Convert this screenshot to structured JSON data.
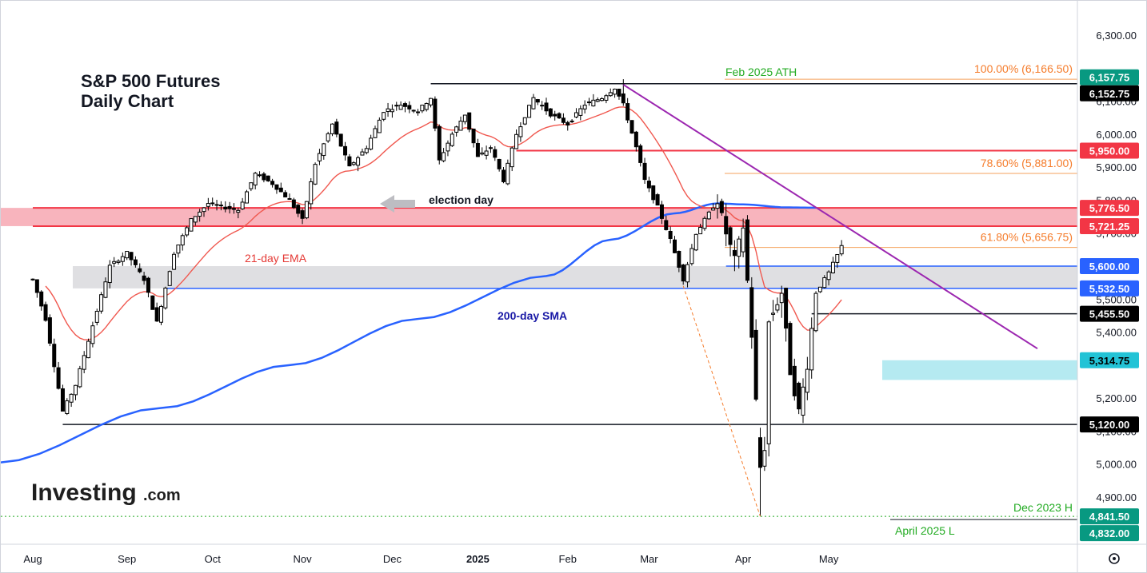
{
  "chart_data": {
    "type": "candlestick",
    "title_line1": "S&P 500 Futures",
    "title_line2": "Daily Chart",
    "brand_main": "Investing",
    "brand_suffix": ".com",
    "ylim": [
      4780,
      6380
    ],
    "y_ticks": [
      {
        "value": 6300,
        "label": "6,300.00"
      },
      {
        "value": 6100,
        "label": "6,100.00"
      },
      {
        "value": 6000,
        "label": "6,000.00"
      },
      {
        "value": 5900,
        "label": "5,900.00"
      },
      {
        "value": 5800,
        "label": "5,800.00"
      },
      {
        "value": 5700,
        "label": "5,700.00"
      },
      {
        "value": 5500,
        "label": "5,500.00"
      },
      {
        "value": 5400,
        "label": "5,400.00"
      },
      {
        "value": 5200,
        "label": "5,200.00"
      },
      {
        "value": 5100,
        "label": "5,100.00"
      },
      {
        "value": 5000,
        "label": "5,000.00"
      },
      {
        "value": 4900,
        "label": "4,900.00"
      }
    ],
    "x_ticks": [
      {
        "label": "Aug",
        "bold": false
      },
      {
        "label": "Sep",
        "bold": false
      },
      {
        "label": "Oct",
        "bold": false
      },
      {
        "label": "Nov",
        "bold": false
      },
      {
        "label": "Dec",
        "bold": false
      },
      {
        "label": "2025",
        "bold": true
      },
      {
        "label": "Feb",
        "bold": false
      },
      {
        "label": "Mar",
        "bold": false
      },
      {
        "label": "Apr",
        "bold": false
      },
      {
        "label": "May",
        "bold": false
      }
    ],
    "x_tick_days": [
      0,
      22,
      42,
      63,
      84,
      104,
      125,
      144,
      166,
      186
    ],
    "zones": [
      {
        "name": "resistance-zone",
        "from": 5721.25,
        "to": 5776.5,
        "color": "#f7a7b2"
      },
      {
        "name": "gray-zone",
        "from": 5532.5,
        "to": 5600,
        "color": "#d9d9dd"
      },
      {
        "name": "support-zone",
        "from": 5255,
        "to": 5314.75,
        "color": "#a8e6ef"
      }
    ],
    "levels": [
      {
        "value": 6157.75,
        "label": "6,157.75",
        "bg": "#089981",
        "fg": "#ffffff",
        "line": null
      },
      {
        "value": 6152.75,
        "label": "6,152.75",
        "bg": "#000000",
        "fg": "#ffffff",
        "line": "#131722",
        "from_day": 93
      },
      {
        "value": 5950,
        "label": "5,950.00",
        "bg": "#f23645",
        "fg": "#ffffff",
        "line": "#f23645",
        "from_day": 113
      },
      {
        "value": 5776.5,
        "label": "5,776.50",
        "bg": "#f23645",
        "fg": "#ffffff",
        "line": "#f23645",
        "from_day": 0
      },
      {
        "value": 5721.25,
        "label": "5,721.25",
        "bg": "#f23645",
        "fg": "#ffffff",
        "line": "#f23645",
        "from_day": 0
      },
      {
        "value": 5600,
        "label": "5,600.00",
        "bg": "#2962ff",
        "fg": "#ffffff",
        "line": "#2962ff",
        "from_day": 162
      },
      {
        "value": 5532.5,
        "label": "5,532.50",
        "bg": "#2962ff",
        "fg": "#ffffff",
        "line": "#2962ff",
        "from_day": 31
      },
      {
        "value": 5455.5,
        "label": "5,455.50",
        "bg": "#000000",
        "fg": "#ffffff",
        "line": "#131722",
        "from_day": 182
      },
      {
        "value": 5314.75,
        "label": "5,314.75",
        "bg": "#22c3d6",
        "fg": "#000000",
        "line": null
      },
      {
        "value": 5120,
        "label": "5,120.00",
        "bg": "#000000",
        "fg": "#ffffff",
        "line": "#131722",
        "from_day": 7
      },
      {
        "value": 4841.5,
        "label": "4,841.50",
        "bg": "#089981",
        "fg": "#ffffff",
        "line": null
      },
      {
        "value": 4832,
        "label": "4,832.00",
        "bg": "#089981",
        "fg": "#ffffff",
        "line": null
      }
    ],
    "fibonacci": [
      {
        "value": 6166.5,
        "label": "100.00% (6,166.50)"
      },
      {
        "value": 5881,
        "label": "78.60% (5,881.00)"
      },
      {
        "value": 5656.75,
        "label": "61.80% (5,656.75)"
      }
    ],
    "annotations": {
      "ath": "Feb 2025 ATH",
      "election": "election day",
      "ema": "21-day EMA",
      "sma": "200-day SMA",
      "dec2023": "Dec 2023 H",
      "april_low": "April 2025 L"
    },
    "series": [
      {
        "name": "S&P 500 Futures",
        "type": "candlestick",
        "color_up": "#ffffff",
        "color_down": "#000000"
      },
      {
        "name": "21-day EMA",
        "type": "line",
        "color": "#f0584f"
      },
      {
        "name": "200-day SMA",
        "type": "line",
        "color": "#2962ff"
      }
    ],
    "anchors": [
      [
        0,
        5560
      ],
      [
        3,
        5440
      ],
      [
        7,
        5160
      ],
      [
        10,
        5240
      ],
      [
        14,
        5420
      ],
      [
        18,
        5600
      ],
      [
        22,
        5640
      ],
      [
        26,
        5560
      ],
      [
        29,
        5430
      ],
      [
        33,
        5640
      ],
      [
        37,
        5740
      ],
      [
        41,
        5790
      ],
      [
        44,
        5780
      ],
      [
        48,
        5770
      ],
      [
        52,
        5880
      ],
      [
        56,
        5850
      ],
      [
        60,
        5800
      ],
      [
        62,
        5760
      ],
      [
        63,
        5740
      ],
      [
        66,
        5910
      ],
      [
        70,
        6030
      ],
      [
        74,
        5900
      ],
      [
        78,
        5960
      ],
      [
        82,
        6070
      ],
      [
        86,
        6090
      ],
      [
        90,
        6070
      ],
      [
        93,
        6110
      ],
      [
        95,
        5920
      ],
      [
        98,
        6000
      ],
      [
        101,
        6060
      ],
      [
        104,
        5930
      ],
      [
        107,
        5960
      ],
      [
        110,
        5860
      ],
      [
        113,
        6000
      ],
      [
        117,
        6110
      ],
      [
        121,
        6060
      ],
      [
        125,
        6030
      ],
      [
        129,
        6090
      ],
      [
        133,
        6110
      ],
      [
        136,
        6140
      ],
      [
        138,
        6090
      ],
      [
        141,
        5960
      ],
      [
        143,
        5860
      ],
      [
        146,
        5780
      ],
      [
        149,
        5680
      ],
      [
        152,
        5560
      ],
      [
        155,
        5700
      ],
      [
        158,
        5760
      ],
      [
        160,
        5800
      ],
      [
        162,
        5700
      ],
      [
        164,
        5620
      ],
      [
        166,
        5720
      ],
      [
        168,
        5390
      ],
      [
        170,
        4990
      ],
      [
        171,
        5050
      ],
      [
        172,
        5430
      ],
      [
        175,
        5520
      ],
      [
        177,
        5280
      ],
      [
        179,
        5160
      ],
      [
        181,
        5300
      ],
      [
        183,
        5520
      ],
      [
        186,
        5580
      ],
      [
        189,
        5660
      ]
    ]
  }
}
